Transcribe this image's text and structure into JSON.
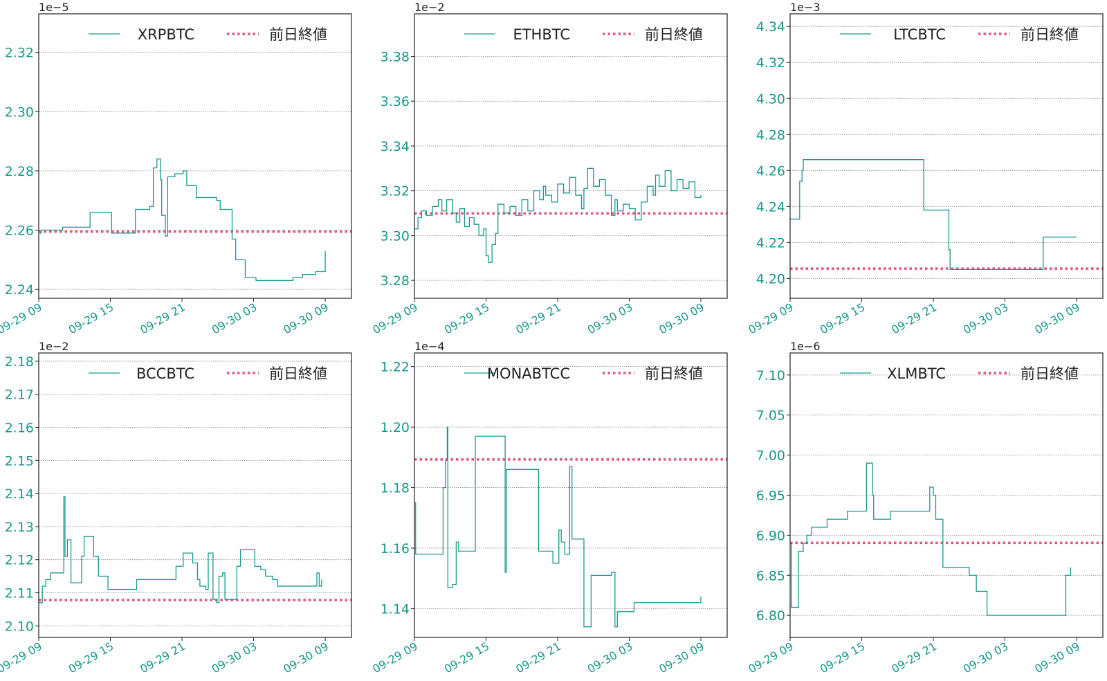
{
  "colors": {
    "series": "#17998c",
    "reference": "#e0557a",
    "tick_text": "#17998c"
  },
  "chart_data": [
    {
      "type": "line",
      "offset_label": "1e−5",
      "series_name": "XRPBTC",
      "reference_name": "前日終値",
      "ylim": [
        2.237,
        2.333
      ],
      "yticks": [
        2.24,
        2.26,
        2.28,
        2.3,
        2.32
      ],
      "ytick_labels": [
        "2.24",
        "2.26",
        "2.28",
        "2.30",
        "2.32"
      ],
      "xlim": [
        0,
        26.2
      ],
      "xticks": [
        0,
        6,
        12,
        18,
        24
      ],
      "xtick_labels": [
        "09-29 09",
        "09-29 15",
        "09-29 21",
        "09-30 03",
        "09-30 09"
      ],
      "reference_value": 2.2595,
      "x": [
        0.1,
        0.2,
        2.0,
        4.3,
        6.1,
        8.1,
        9.3,
        9.6,
        9.9,
        10.2,
        10.3,
        10.6,
        10.8,
        11.1,
        11.4,
        12.1,
        12.4,
        13.2,
        14.9,
        15.2,
        16.2,
        16.5,
        17.3,
        18.2,
        20.8,
        21.3,
        22.1,
        23.2,
        24.0
      ],
      "y": [
        2.259,
        2.26,
        2.261,
        2.266,
        2.259,
        2.267,
        2.268,
        2.281,
        2.284,
        2.277,
        2.265,
        2.258,
        2.278,
        2.278,
        2.279,
        2.28,
        2.275,
        2.271,
        2.27,
        2.267,
        2.257,
        2.25,
        2.244,
        2.243,
        2.243,
        2.244,
        2.245,
        2.246,
        2.253
      ]
    },
    {
      "type": "line",
      "offset_label": "1e−2",
      "series_name": "ETHBTC",
      "reference_name": "前日終値",
      "ylim": [
        3.272,
        3.399
      ],
      "yticks": [
        3.28,
        3.3,
        3.32,
        3.34,
        3.36,
        3.38
      ],
      "ytick_labels": [
        "3.28",
        "3.30",
        "3.32",
        "3.34",
        "3.36",
        "3.38"
      ],
      "xlim": [
        0,
        26.2
      ],
      "xticks": [
        0,
        6,
        12,
        18,
        24
      ],
      "xtick_labels": [
        "09-29 09",
        "09-29 15",
        "09-29 21",
        "09-30 03",
        "09-30 09"
      ],
      "reference_value": 3.3099,
      "x": [
        0.0,
        0.3,
        0.6,
        1.0,
        1.5,
        2.0,
        2.3,
        2.7,
        3.2,
        3.5,
        3.8,
        4.2,
        4.6,
        5.0,
        5.4,
        5.8,
        6.0,
        6.2,
        6.5,
        6.8,
        7.0,
        7.5,
        8.0,
        8.5,
        9.0,
        9.5,
        10.0,
        10.5,
        10.8,
        11.0,
        11.5,
        12.0,
        12.5,
        13.0,
        13.5,
        14.0,
        14.2,
        14.5,
        15.0,
        15.5,
        16.0,
        16.5,
        16.8,
        17.0,
        17.5,
        18.0,
        18.5,
        19.0,
        19.5,
        20.0,
        20.2,
        20.5,
        21.0,
        21.5,
        22.0,
        22.5,
        23.0,
        23.5,
        24.0
      ],
      "y": [
        3.303,
        3.308,
        3.311,
        3.309,
        3.313,
        3.316,
        3.311,
        3.316,
        3.31,
        3.306,
        3.312,
        3.304,
        3.308,
        3.305,
        3.3,
        3.303,
        3.291,
        3.288,
        3.296,
        3.301,
        3.314,
        3.31,
        3.313,
        3.309,
        3.316,
        3.311,
        3.32,
        3.316,
        3.322,
        3.318,
        3.315,
        3.323,
        3.319,
        3.326,
        3.318,
        3.312,
        3.321,
        3.33,
        3.322,
        3.325,
        3.318,
        3.309,
        3.316,
        3.311,
        3.314,
        3.312,
        3.307,
        3.315,
        3.322,
        3.318,
        3.327,
        3.322,
        3.329,
        3.32,
        3.325,
        3.321,
        3.324,
        3.317,
        3.318
      ]
    },
    {
      "type": "line",
      "offset_label": "1e−3",
      "series_name": "LTCBTC",
      "reference_name": "前日終値",
      "ylim": [
        4.189,
        4.347
      ],
      "yticks": [
        4.2,
        4.22,
        4.24,
        4.26,
        4.28,
        4.3,
        4.32,
        4.34
      ],
      "ytick_labels": [
        "4.20",
        "4.22",
        "4.24",
        "4.26",
        "4.28",
        "4.30",
        "4.32",
        "4.34"
      ],
      "xlim": [
        0,
        26.2
      ],
      "xticks": [
        0,
        6,
        12,
        18,
        24
      ],
      "xtick_labels": [
        "09-29 09",
        "09-29 15",
        "09-29 21",
        "09-30 03",
        "09-30 09"
      ],
      "reference_value": 4.2055,
      "x": [
        0.0,
        0.5,
        0.8,
        1.0,
        1.1,
        11.2,
        13.3,
        13.4,
        21.2,
        24.0
      ],
      "y": [
        4.233,
        4.233,
        4.254,
        4.26,
        4.266,
        4.238,
        4.216,
        4.205,
        4.223,
        4.223
      ]
    },
    {
      "type": "line",
      "offset_label": "1e−2",
      "series_name": "BCCBTC",
      "reference_name": "前日終値",
      "ylim": [
        2.0965,
        2.1825
      ],
      "yticks": [
        2.1,
        2.11,
        2.12,
        2.13,
        2.14,
        2.15,
        2.16,
        2.17,
        2.18
      ],
      "ytick_labels": [
        "2.10",
        "2.11",
        "2.12",
        "2.13",
        "2.14",
        "2.15",
        "2.16",
        "2.17",
        "2.18"
      ],
      "xlim": [
        0,
        26.2
      ],
      "xticks": [
        0,
        6,
        12,
        18,
        24
      ],
      "xtick_labels": [
        "09-29 09",
        "09-29 15",
        "09-29 21",
        "09-30 03",
        "09-30 09"
      ],
      "reference_value": 2.1078,
      "x": [
        0.0,
        0.3,
        0.6,
        1.0,
        2.1,
        2.2,
        2.4,
        2.7,
        2.9,
        3.6,
        3.8,
        4.0,
        4.6,
        5.0,
        5.8,
        6.4,
        8.2,
        11.5,
        12.1,
        12.9,
        13.3,
        13.5,
        14.0,
        14.2,
        14.6,
        14.9,
        15.1,
        15.4,
        15.6,
        16.6,
        16.9,
        17.4,
        18.1,
        18.6,
        19.0,
        19.6,
        20.0,
        21.6,
        23.3,
        23.5,
        23.7
      ],
      "y": [
        2.107,
        2.112,
        2.114,
        2.116,
        2.139,
        2.121,
        2.126,
        2.113,
        2.113,
        2.121,
        2.127,
        2.127,
        2.121,
        2.115,
        2.111,
        2.111,
        2.114,
        2.118,
        2.122,
        2.119,
        2.114,
        2.112,
        2.111,
        2.122,
        2.108,
        2.107,
        2.115,
        2.116,
        2.108,
        2.118,
        2.123,
        2.123,
        2.118,
        2.117,
        2.115,
        2.114,
        2.112,
        2.112,
        2.116,
        2.112,
        2.114
      ]
    },
    {
      "type": "line",
      "offset_label": "1e−4",
      "series_name": "MONABTCC",
      "reference_name": "前日終値",
      "ylim": [
        1.1305,
        1.2245
      ],
      "yticks": [
        1.14,
        1.16,
        1.18,
        1.2,
        1.22
      ],
      "ytick_labels": [
        "1.14",
        "1.16",
        "1.18",
        "1.20",
        "1.22"
      ],
      "xlim": [
        0,
        26.2
      ],
      "xticks": [
        0,
        6,
        12,
        18,
        24
      ],
      "xtick_labels": [
        "09-29 09",
        "09-29 15",
        "09-29 21",
        "09-30 03",
        "09-30 09"
      ],
      "reference_value": 1.1893,
      "x": [
        0.0,
        0.1,
        2.2,
        2.4,
        2.6,
        2.75,
        2.8,
        3.2,
        3.5,
        3.7,
        5.1,
        5.4,
        7.6,
        7.7,
        8.2,
        10.4,
        11.0,
        11.6,
        12.1,
        12.3,
        12.6,
        13.0,
        13.2,
        14.2,
        14.8,
        16.5,
        16.8,
        17.0,
        17.7,
        18.1,
        18.4,
        20.4,
        24.0
      ],
      "y": [
        1.175,
        1.158,
        1.158,
        1.18,
        1.189,
        1.2,
        1.147,
        1.148,
        1.162,
        1.159,
        1.197,
        1.197,
        1.152,
        1.186,
        1.186,
        1.159,
        1.159,
        1.155,
        1.166,
        1.162,
        1.158,
        1.187,
        1.163,
        1.134,
        1.151,
        1.152,
        1.134,
        1.139,
        1.139,
        1.139,
        1.142,
        1.142,
        1.144
      ]
    },
    {
      "type": "line",
      "offset_label": "1e−6",
      "series_name": "XLMBTC",
      "reference_name": "前日終値",
      "ylim": [
        6.7725,
        7.1275
      ],
      "yticks": [
        6.8,
        6.85,
        6.9,
        6.95,
        7.0,
        7.05,
        7.1
      ],
      "ytick_labels": [
        "6.80",
        "6.85",
        "6.90",
        "6.95",
        "7.00",
        "7.05",
        "7.10"
      ],
      "xlim": [
        0,
        26.2
      ],
      "xticks": [
        0,
        6,
        12,
        18,
        24
      ],
      "xtick_labels": [
        "09-29 09",
        "09-29 15",
        "09-29 21",
        "09-30 03",
        "09-30 09"
      ],
      "reference_value": 6.8905,
      "x": [
        0.0,
        0.1,
        0.7,
        1.1,
        1.4,
        1.8,
        3.1,
        4.8,
        6.4,
        6.9,
        7.0,
        8.4,
        11.7,
        12.0,
        12.2,
        12.8,
        13.4,
        15.0,
        15.6,
        16.5,
        17.3,
        22.8,
        23.1,
        23.5
      ],
      "y": [
        6.89,
        6.81,
        6.88,
        6.89,
        6.9,
        6.91,
        6.92,
        6.93,
        6.99,
        6.95,
        6.92,
        6.93,
        6.96,
        6.95,
        6.92,
        6.86,
        6.86,
        6.85,
        6.83,
        6.8,
        6.8,
        6.8,
        6.85,
        6.86
      ]
    }
  ]
}
